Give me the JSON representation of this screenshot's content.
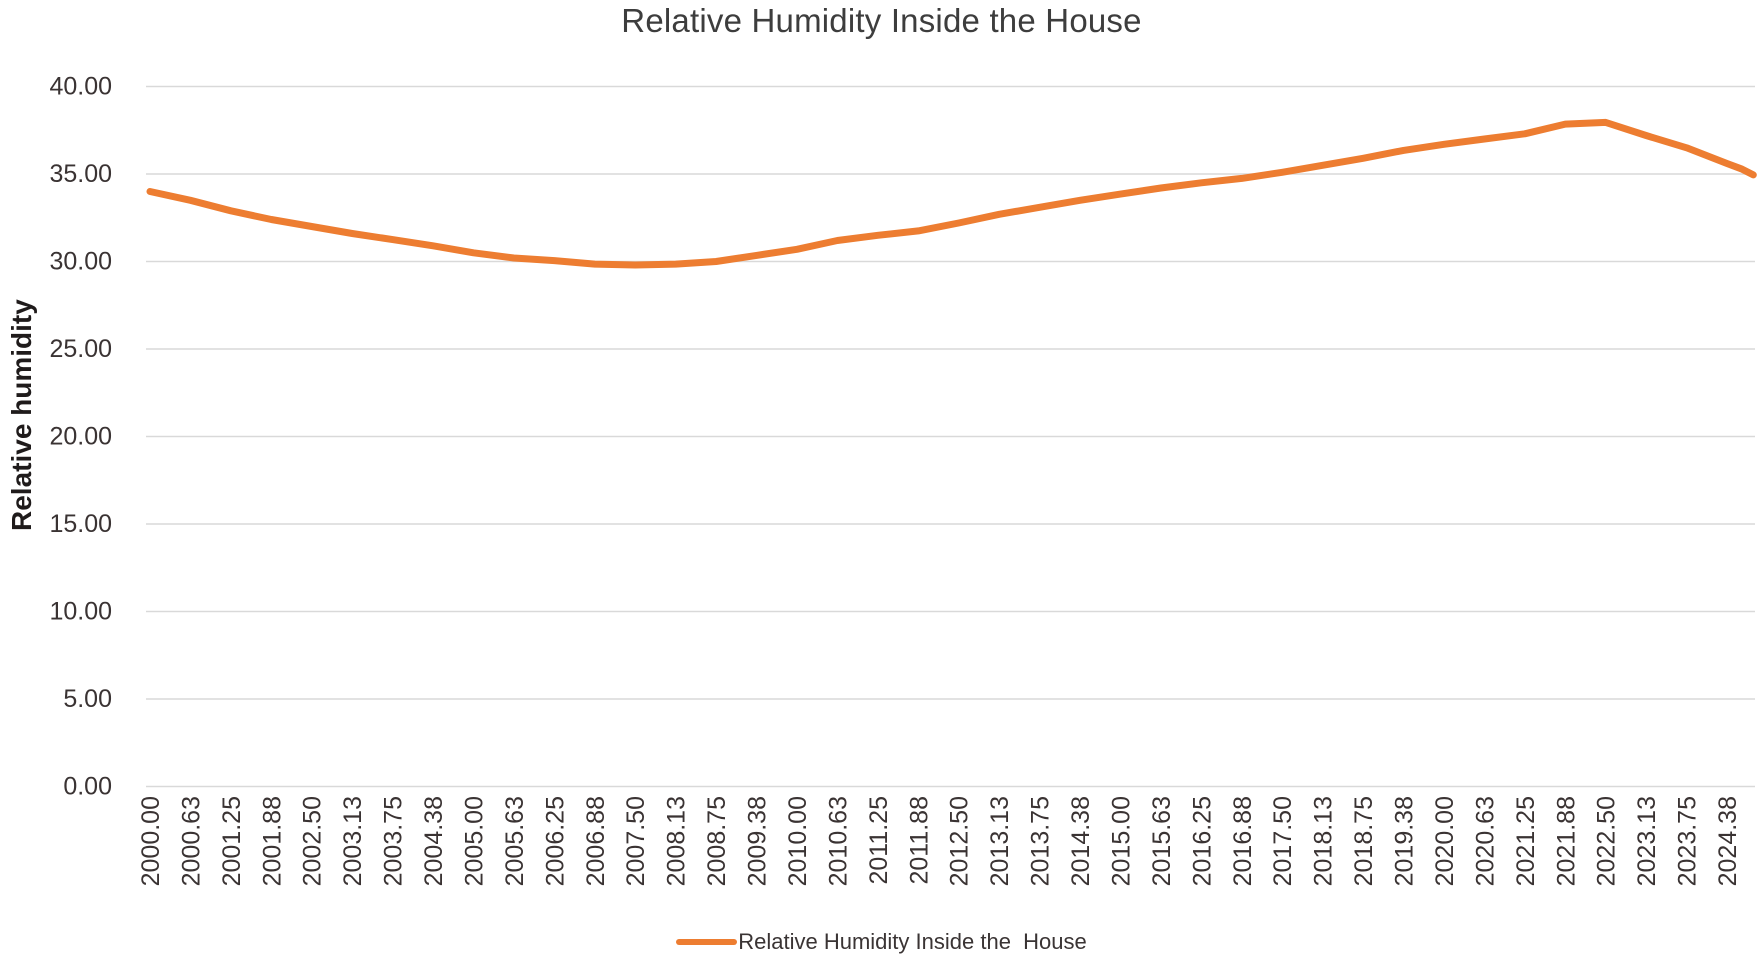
{
  "title": "Relative Humidity Inside the House",
  "y_axis": {
    "label": "Relative humidity",
    "ticks": [
      "40.00",
      "35.00",
      "30.00",
      "25.00",
      "20.00",
      "15.00",
      "10.00",
      "5.00",
      "0.00"
    ]
  },
  "legend": {
    "label": "Relative Humidity Inside the  House",
    "swatch_color": "#ED7D31"
  },
  "colors": {
    "line": "#ED7D31",
    "gridline": "#D9D9D9",
    "tick_text": "#3a3333"
  },
  "chart_data": {
    "type": "line",
    "title": "Relative Humidity Inside the House",
    "xlabel": "",
    "ylabel": "Relative humidity",
    "ylim": [
      0,
      40
    ],
    "y_tick_step": 5,
    "grid": true,
    "legend_position": "bottom",
    "line_color": "#ED7D31",
    "categories": [
      "2000.00",
      "2000.63",
      "2001.25",
      "2001.88",
      "2002.50",
      "2003.13",
      "2003.75",
      "2004.38",
      "2005.00",
      "2005.63",
      "2006.25",
      "2006.88",
      "2007.50",
      "2008.13",
      "2008.75",
      "2009.38",
      "2010.00",
      "2010.63",
      "2011.25",
      "2011.88",
      "2012.50",
      "2013.13",
      "2013.75",
      "2014.38",
      "2015.00",
      "2015.63",
      "2016.25",
      "2016.88",
      "2017.50",
      "2018.13",
      "2018.75",
      "2019.38",
      "2020.00",
      "2020.63",
      "2021.25",
      "2021.88",
      "2022.50",
      "2023.13",
      "2023.75",
      "2024.38"
    ],
    "series": [
      {
        "name": "Relative Humidity Inside the  House",
        "values": [
          34.0,
          33.5,
          32.9,
          32.4,
          32.0,
          31.6,
          31.25,
          30.9,
          30.5,
          30.2,
          30.05,
          29.85,
          29.8,
          29.85,
          30.0,
          30.35,
          30.7,
          31.2,
          31.5,
          31.75,
          32.2,
          32.7,
          33.1,
          33.5,
          33.85,
          34.2,
          34.5,
          34.75,
          35.1,
          35.5,
          35.9,
          36.35,
          36.7,
          37.0,
          37.3,
          37.85,
          37.95,
          37.2,
          36.5,
          35.6
        ]
      }
    ],
    "trailing_points": [
      {
        "dx": 0.35,
        "value": 35.3
      },
      {
        "dx": 0.65,
        "value": 34.95
      }
    ]
  }
}
